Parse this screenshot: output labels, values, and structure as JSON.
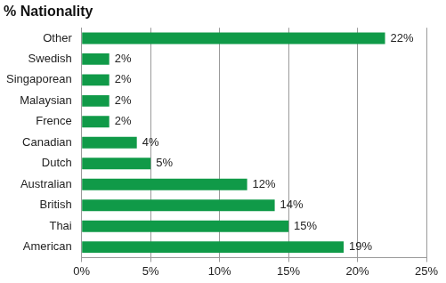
{
  "chart_data": {
    "type": "bar",
    "title": "% Nationality",
    "orientation": "horizontal",
    "categories": [
      "Other",
      "Swedish",
      "Singaporean",
      "Malaysian",
      "Frence",
      "Canadian",
      "Dutch",
      "Australian",
      "British",
      "Thai",
      "American"
    ],
    "values": [
      22,
      2,
      2,
      2,
      2,
      4,
      5,
      12,
      14,
      15,
      19
    ],
    "value_labels": [
      "22%",
      "2%",
      "2%",
      "2%",
      "2%",
      "4%",
      "5%",
      "12%",
      "14%",
      "15%",
      "19%"
    ],
    "color": "#109a48",
    "xlim": [
      0,
      25
    ],
    "xticks": [
      {
        "value": 0,
        "label": "0%"
      },
      {
        "value": 5,
        "label": "5%"
      },
      {
        "value": 10,
        "label": "10%"
      },
      {
        "value": 15,
        "label": "15%"
      },
      {
        "value": 20,
        "label": "20%"
      },
      {
        "value": 25,
        "label": "25%"
      }
    ],
    "grid": true,
    "data_labels": true
  }
}
